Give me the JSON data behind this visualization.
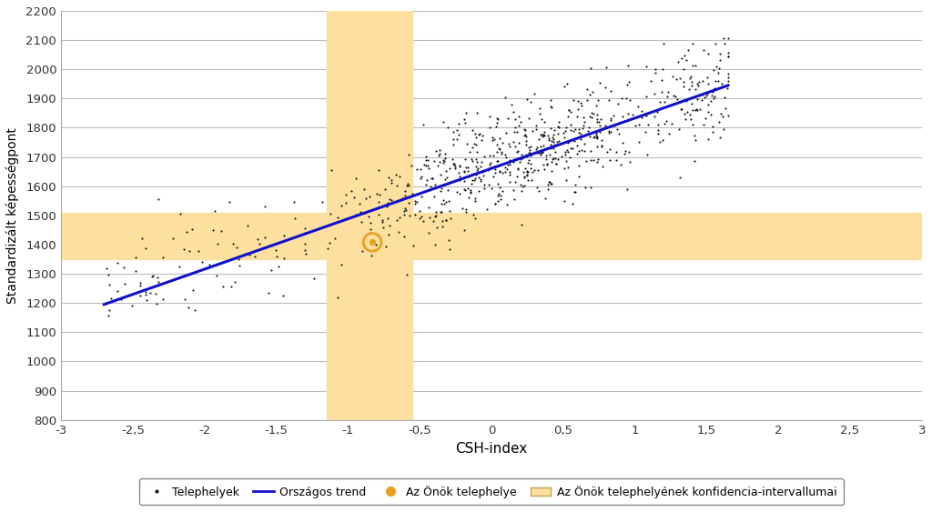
{
  "title": "",
  "xlabel": "CSH-index",
  "ylabel": "Standardizált képességpont",
  "xlim": [
    -3,
    3
  ],
  "ylim": [
    800,
    2200
  ],
  "xticks": [
    -3,
    -2.5,
    -2,
    -1.5,
    -1,
    -0.5,
    0,
    0.5,
    1,
    1.5,
    2,
    2.5,
    3
  ],
  "xtick_labels": [
    "-3",
    "-2,5",
    "-2",
    "-1,5",
    "-1",
    "-0,5",
    "0",
    "0,5",
    "1",
    "1,5",
    "2",
    "2,5",
    "3"
  ],
  "yticks": [
    800,
    900,
    1000,
    1100,
    1200,
    1300,
    1400,
    1500,
    1600,
    1700,
    1800,
    1900,
    2000,
    2100,
    2200
  ],
  "trend_x1": -2.7,
  "trend_y1": 1195,
  "trend_x2": 1.65,
  "trend_y2": 1945,
  "highlight_x_min": -1.15,
  "highlight_x_max": -0.55,
  "highlight_y_min": 1350,
  "highlight_y_max": 1510,
  "highlight_color": "#FDDFA0",
  "highlight_alpha": 1.0,
  "special_point_x": -0.83,
  "special_point_y": 1408,
  "special_point_color": "#E8A020",
  "scatter_color": "#111111",
  "trend_color": "#1010CC",
  "background_color": "#FFFFFF",
  "grid_color": "#BBBBBB",
  "legend_labels": [
    "Telephelyek",
    "Országos trend",
    "Az Önök telephelye",
    "Az Önök telephelyének konfidencia-intervallumai"
  ],
  "seed": 42,
  "n_points": 800
}
